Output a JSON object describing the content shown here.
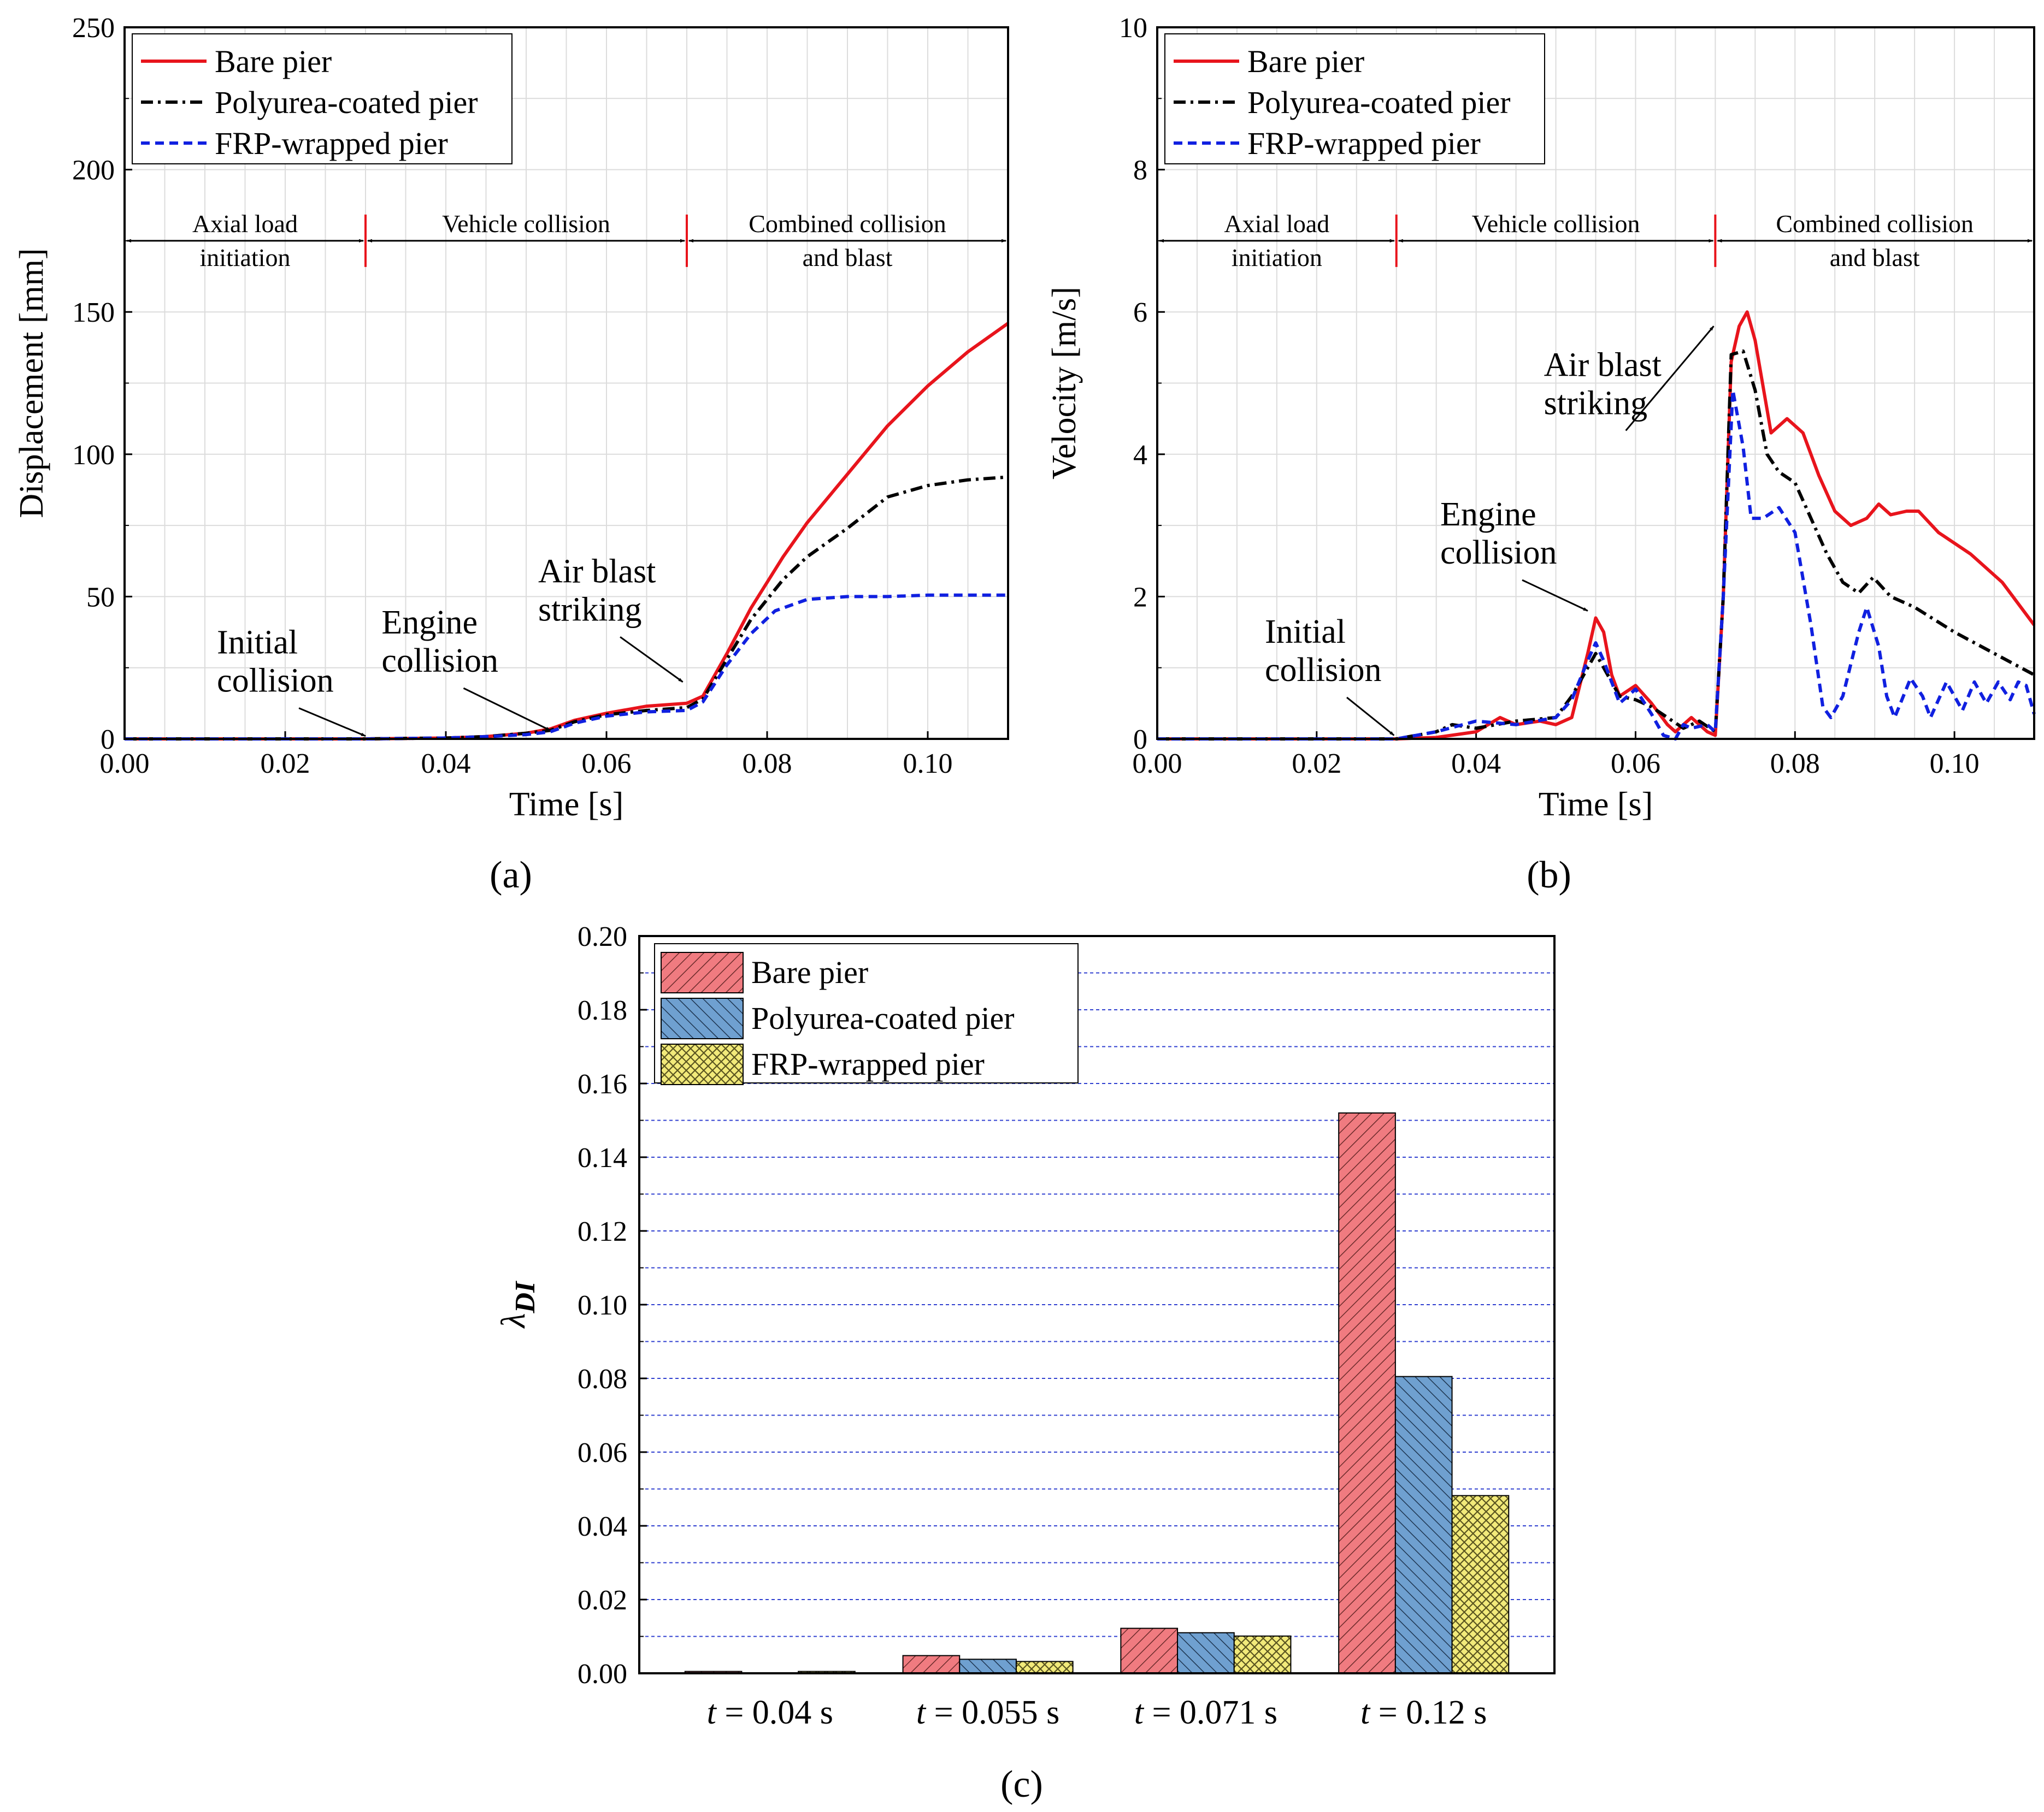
{
  "figure": {
    "panels": {
      "a": "(a)",
      "b": "(b)",
      "c": "(c)"
    }
  },
  "chart_data": [
    {
      "id": "a",
      "type": "line",
      "panel_label": "(a)",
      "xlabel": "Time [s]",
      "ylabel": "Displacement [mm]",
      "xlim": [
        0.0,
        0.11
      ],
      "ylim": [
        0,
        250
      ],
      "xticks": [
        0.0,
        0.02,
        0.04,
        0.06,
        0.08,
        0.1
      ],
      "xtick_labels": [
        "0.00",
        "0.02",
        "0.04",
        "0.06",
        "0.08",
        "0.10"
      ],
      "yticks": [
        0,
        50,
        100,
        150,
        200,
        250
      ],
      "ytick_labels": [
        "0",
        "50",
        "100",
        "150",
        "200",
        "250"
      ],
      "grid": true,
      "legend": "top-left",
      "series": [
        {
          "name": "Bare pier",
          "color": "#e8141c",
          "style": "solid",
          "points": [
            [
              0,
              0
            ],
            [
              0.03,
              0
            ],
            [
              0.04,
              0.3
            ],
            [
              0.045,
              0.8
            ],
            [
              0.05,
              2
            ],
            [
              0.053,
              3.5
            ],
            [
              0.056,
              6.5
            ],
            [
              0.06,
              9
            ],
            [
              0.065,
              11.5
            ],
            [
              0.07,
              12.5
            ],
            [
              0.072,
              15
            ],
            [
              0.075,
              30
            ],
            [
              0.078,
              46
            ],
            [
              0.082,
              64
            ],
            [
              0.085,
              76
            ],
            [
              0.09,
              93
            ],
            [
              0.095,
              110
            ],
            [
              0.1,
              124
            ],
            [
              0.105,
              136
            ],
            [
              0.11,
              146
            ]
          ]
        },
        {
          "name": "Polyurea-coated pier",
          "color": "#000000",
          "style": "dashdot",
          "points": [
            [
              0,
              0
            ],
            [
              0.03,
              0
            ],
            [
              0.04,
              0.3
            ],
            [
              0.045,
              0.8
            ],
            [
              0.05,
              2
            ],
            [
              0.053,
              3
            ],
            [
              0.056,
              6
            ],
            [
              0.06,
              8.5
            ],
            [
              0.065,
              10
            ],
            [
              0.07,
              11
            ],
            [
              0.072,
              14
            ],
            [
              0.075,
              28
            ],
            [
              0.078,
              42
            ],
            [
              0.082,
              56
            ],
            [
              0.085,
              64
            ],
            [
              0.09,
              74
            ],
            [
              0.095,
              85
            ],
            [
              0.1,
              89
            ],
            [
              0.105,
              91
            ],
            [
              0.11,
              92
            ]
          ]
        },
        {
          "name": "FRP-wrapped pier",
          "color": "#1020e0",
          "style": "dashed",
          "points": [
            [
              0,
              0
            ],
            [
              0.03,
              0
            ],
            [
              0.04,
              0.3
            ],
            [
              0.045,
              0.8
            ],
            [
              0.05,
              1.5
            ],
            [
              0.053,
              2.5
            ],
            [
              0.056,
              5.5
            ],
            [
              0.06,
              8
            ],
            [
              0.065,
              9.5
            ],
            [
              0.07,
              10
            ],
            [
              0.072,
              13
            ],
            [
              0.075,
              26
            ],
            [
              0.078,
              37
            ],
            [
              0.081,
              45
            ],
            [
              0.085,
              49
            ],
            [
              0.09,
              50
            ],
            [
              0.095,
              50
            ],
            [
              0.1,
              50.5
            ],
            [
              0.11,
              50.5
            ]
          ]
        }
      ],
      "phases": [
        {
          "label1": "Axial load",
          "label2": "initiation",
          "from": 0.0,
          "to": 0.03
        },
        {
          "label1": "Vehicle collision",
          "label2": "",
          "from": 0.03,
          "to": 0.07
        },
        {
          "label1": "Combined collision",
          "label2": "and blast",
          "from": 0.07,
          "to": 0.11
        }
      ],
      "phase_y": 175,
      "annotations": [
        {
          "lines": [
            "Initial",
            "collision"
          ],
          "tx": 0.0115,
          "ty": 30,
          "ax": 0.03,
          "ay": 1
        },
        {
          "lines": [
            "Engine",
            "collision"
          ],
          "tx": 0.032,
          "ty": 37,
          "ax": 0.053,
          "ay": 3
        },
        {
          "lines": [
            "Air blast",
            "striking"
          ],
          "tx": 0.0515,
          "ty": 55,
          "ax": 0.0695,
          "ay": 20
        }
      ]
    },
    {
      "id": "b",
      "type": "line",
      "panel_label": "(b)",
      "xlabel": "Time [s]",
      "ylabel": "Velocity [m/s]",
      "xlim": [
        0.0,
        0.11
      ],
      "ylim": [
        0,
        10
      ],
      "xticks": [
        0.0,
        0.02,
        0.04,
        0.06,
        0.08,
        0.1
      ],
      "xtick_labels": [
        "0.00",
        "0.02",
        "0.04",
        "0.06",
        "0.08",
        "0.10"
      ],
      "yticks": [
        0,
        2,
        4,
        6,
        8,
        10
      ],
      "ytick_labels": [
        "0",
        "2",
        "4",
        "6",
        "8",
        "10"
      ],
      "grid": true,
      "legend": "top-left",
      "series": [
        {
          "name": "Bare pier",
          "color": "#e8141c",
          "style": "solid",
          "points": [
            [
              0,
              0
            ],
            [
              0.03,
              0
            ],
            [
              0.035,
              0.02
            ],
            [
              0.04,
              0.1
            ],
            [
              0.043,
              0.3
            ],
            [
              0.045,
              0.2
            ],
            [
              0.048,
              0.25
            ],
            [
              0.05,
              0.2
            ],
            [
              0.052,
              0.3
            ],
            [
              0.054,
              1.2
            ],
            [
              0.055,
              1.7
            ],
            [
              0.056,
              1.5
            ],
            [
              0.057,
              0.9
            ],
            [
              0.058,
              0.6
            ],
            [
              0.06,
              0.75
            ],
            [
              0.062,
              0.5
            ],
            [
              0.064,
              0.2
            ],
            [
              0.065,
              0.1
            ],
            [
              0.067,
              0.3
            ],
            [
              0.069,
              0.1
            ],
            [
              0.07,
              0.05
            ],
            [
              0.071,
              2
            ],
            [
              0.072,
              5.3
            ],
            [
              0.073,
              5.8
            ],
            [
              0.074,
              6.0
            ],
            [
              0.075,
              5.6
            ],
            [
              0.077,
              4.3
            ],
            [
              0.079,
              4.5
            ],
            [
              0.081,
              4.3
            ],
            [
              0.083,
              3.7
            ],
            [
              0.085,
              3.2
            ],
            [
              0.087,
              3.0
            ],
            [
              0.089,
              3.1
            ],
            [
              0.0905,
              3.3
            ],
            [
              0.092,
              3.15
            ],
            [
              0.094,
              3.2
            ],
            [
              0.0955,
              3.2
            ],
            [
              0.098,
              2.9
            ],
            [
              0.102,
              2.6
            ],
            [
              0.106,
              2.2
            ],
            [
              0.11,
              1.6
            ]
          ]
        },
        {
          "name": "Polyurea-coated pier",
          "color": "#000000",
          "style": "dashdot",
          "points": [
            [
              0,
              0
            ],
            [
              0.03,
              0
            ],
            [
              0.035,
              0.1
            ],
            [
              0.037,
              0.2
            ],
            [
              0.04,
              0.15
            ],
            [
              0.045,
              0.25
            ],
            [
              0.05,
              0.3
            ],
            [
              0.052,
              0.6
            ],
            [
              0.054,
              1.0
            ],
            [
              0.055,
              1.2
            ],
            [
              0.056,
              1.0
            ],
            [
              0.058,
              0.6
            ],
            [
              0.06,
              0.55
            ],
            [
              0.062,
              0.45
            ],
            [
              0.064,
              0.3
            ],
            [
              0.066,
              0.15
            ],
            [
              0.068,
              0.25
            ],
            [
              0.07,
              0.1
            ],
            [
              0.071,
              2
            ],
            [
              0.072,
              5.4
            ],
            [
              0.0735,
              5.45
            ],
            [
              0.075,
              4.9
            ],
            [
              0.0765,
              4.0
            ],
            [
              0.078,
              3.75
            ],
            [
              0.08,
              3.6
            ],
            [
              0.082,
              3.1
            ],
            [
              0.084,
              2.6
            ],
            [
              0.086,
              2.2
            ],
            [
              0.088,
              2.05
            ],
            [
              0.0898,
              2.27
            ],
            [
              0.092,
              2.0
            ],
            [
              0.095,
              1.85
            ],
            [
              0.1,
              1.5
            ],
            [
              0.105,
              1.2
            ],
            [
              0.11,
              0.9
            ]
          ]
        },
        {
          "name": "FRP-wrapped pier",
          "color": "#1020e0",
          "style": "dashed",
          "points": [
            [
              0,
              0
            ],
            [
              0.03,
              0
            ],
            [
              0.035,
              0.1
            ],
            [
              0.04,
              0.25
            ],
            [
              0.045,
              0.2
            ],
            [
              0.05,
              0.3
            ],
            [
              0.052,
              0.55
            ],
            [
              0.054,
              1.1
            ],
            [
              0.055,
              1.35
            ],
            [
              0.056,
              1.1
            ],
            [
              0.058,
              0.5
            ],
            [
              0.06,
              0.7
            ],
            [
              0.062,
              0.35
            ],
            [
              0.0635,
              0.05
            ],
            [
              0.065,
              0.0
            ],
            [
              0.066,
              0.2
            ],
            [
              0.067,
              0.15
            ],
            [
              0.069,
              0.2
            ],
            [
              0.07,
              0.1
            ],
            [
              0.071,
              2
            ],
            [
              0.0722,
              4.9
            ],
            [
              0.0735,
              4.1
            ],
            [
              0.0745,
              3.1
            ],
            [
              0.076,
              3.1
            ],
            [
              0.078,
              3.25
            ],
            [
              0.08,
              2.9
            ],
            [
              0.082,
              1.6
            ],
            [
              0.0835,
              0.45
            ],
            [
              0.0845,
              0.3
            ],
            [
              0.086,
              0.6
            ],
            [
              0.088,
              1.5
            ],
            [
              0.089,
              1.85
            ],
            [
              0.0905,
              1.3
            ],
            [
              0.0915,
              0.6
            ],
            [
              0.0925,
              0.3
            ],
            [
              0.0945,
              0.85
            ],
            [
              0.096,
              0.6
            ],
            [
              0.097,
              0.3
            ],
            [
              0.099,
              0.8
            ],
            [
              0.1,
              0.6
            ],
            [
              0.101,
              0.4
            ],
            [
              0.1025,
              0.8
            ],
            [
              0.104,
              0.5
            ],
            [
              0.1055,
              0.8
            ],
            [
              0.107,
              0.55
            ],
            [
              0.108,
              0.8
            ],
            [
              0.109,
              0.75
            ],
            [
              0.11,
              0.35
            ]
          ]
        }
      ],
      "phases": [
        {
          "label1": "Axial load",
          "label2": "initiation",
          "from": 0.0,
          "to": 0.03
        },
        {
          "label1": "Vehicle collision",
          "label2": "",
          "from": 0.03,
          "to": 0.07
        },
        {
          "label1": "Combined collision",
          "label2": "and blast",
          "from": 0.07,
          "to": 0.11
        }
      ],
      "phase_y": 7,
      "annotations": [
        {
          "lines": [
            "Initial",
            "collision"
          ],
          "tx": 0.0135,
          "ty": 1.35,
          "ax": 0.0297,
          "ay": 0.05
        },
        {
          "lines": [
            "Engine",
            "collision"
          ],
          "tx": 0.0355,
          "ty": 3.0,
          "ax": 0.054,
          "ay": 1.8
        },
        {
          "lines": [
            "Air blast",
            "striking"
          ],
          "tx": 0.0485,
          "ty": 5.1,
          "ax": 0.0698,
          "ay": 5.8
        }
      ]
    },
    {
      "id": "c",
      "type": "bar",
      "panel_label": "(c)",
      "ylabel": "λ",
      "ylabel_sub": "DI",
      "xlabel": "",
      "ylim": [
        0,
        0.2
      ],
      "yticks": [
        0.0,
        0.02,
        0.04,
        0.06,
        0.08,
        0.1,
        0.12,
        0.14,
        0.16,
        0.18,
        0.2
      ],
      "ytick_labels": [
        "0.00",
        "0.02",
        "0.04",
        "0.06",
        "0.08",
        "0.10",
        "0.12",
        "0.14",
        "0.16",
        "0.18",
        "0.20"
      ],
      "grid": true,
      "legend": "top-left",
      "categories": [
        {
          "prefix": "t",
          "rest": " = 0.04 s"
        },
        {
          "prefix": "t",
          "rest": " = 0.055 s"
        },
        {
          "prefix": "t",
          "rest": " = 0.071 s"
        },
        {
          "prefix": "t",
          "rest": " = 0.12 s"
        }
      ],
      "series": [
        {
          "name": "Bare pier",
          "color": "#f07b80",
          "pattern": "diag-right",
          "values": [
            0.0005,
            0.0048,
            0.0122,
            0.152
          ]
        },
        {
          "name": "Polyurea-coated pier",
          "color": "#6fa0d0",
          "pattern": "diag-left",
          "values": [
            0.0,
            0.0038,
            0.011,
            0.0805
          ]
        },
        {
          "name": "FRP-wrapped pier",
          "color": "#f2ea7a",
          "pattern": "crosshatch",
          "values": [
            0.0005,
            0.0032,
            0.0101,
            0.0482
          ]
        }
      ]
    }
  ]
}
